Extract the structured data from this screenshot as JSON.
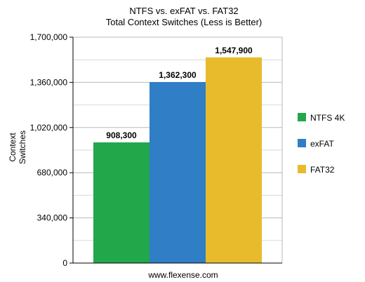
{
  "chart_data": {
    "type": "bar",
    "title": "NTFS vs. exFAT vs. FAT32",
    "subtitle": "Total Context Switches (Less is Better)",
    "ylabel_lines": [
      "Context",
      "Switches"
    ],
    "xlabel": "www.flexense.com",
    "ylim": [
      0,
      1700000
    ],
    "yticks": [
      0,
      340000,
      680000,
      1020000,
      1360000,
      1700000
    ],
    "ytick_labels": [
      "0",
      "340,000",
      "680,000",
      "1,020,000",
      "1,360,000",
      "1,700,000"
    ],
    "grid": true,
    "legend_position": "right",
    "series": [
      {
        "name": "NTFS 4K",
        "value": 908300,
        "label": "908,300",
        "color": "#22a84a"
      },
      {
        "name": "exFAT",
        "value": 1362300,
        "label": "1,362,300",
        "color": "#2f7ec6"
      },
      {
        "name": "FAT32",
        "value": 1547900,
        "label": "1,547,900",
        "color": "#e8bb2c"
      }
    ]
  }
}
